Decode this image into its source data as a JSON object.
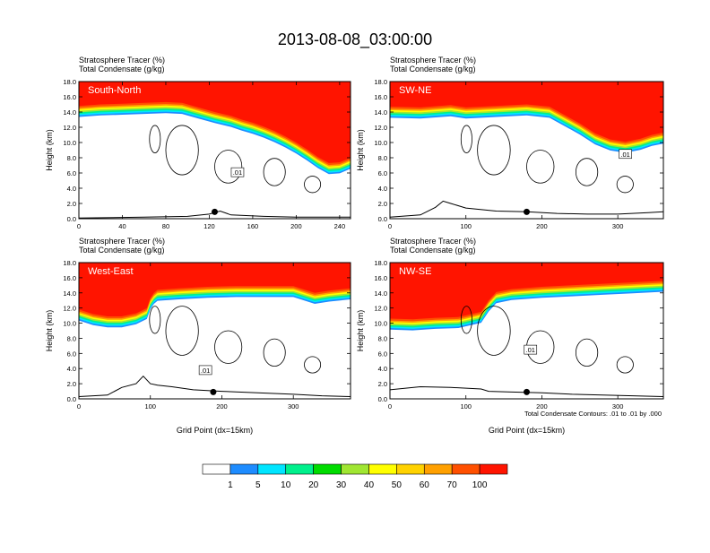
{
  "title": "2013-08-08_03:00:00",
  "footnote": "Total Condensate Contours: .01 to .01 by .000",
  "colorbar": {
    "colors": [
      "#ffffff",
      "#1e8cff",
      "#00e5ff",
      "#00f08c",
      "#00dc00",
      "#a0e632",
      "#ffff00",
      "#ffd200",
      "#ffa000",
      "#ff5000",
      "#ff1400"
    ],
    "labels": [
      "1",
      "5",
      "10",
      "20",
      "30",
      "40",
      "50",
      "60",
      "70",
      "100"
    ]
  },
  "chart_data": [
    {
      "type": "contour",
      "name": "South-North",
      "subtitle_line1": "Stratosphere Tracer   (%)",
      "subtitle_line2": "Total Condensate   (g/kg)",
      "ylabel": "Height (km)",
      "xlabel": "",
      "xlim": [
        0,
        250
      ],
      "xticks": [
        "0",
        "40",
        "80",
        "120",
        "160",
        "200",
        "240"
      ],
      "xtick_values": [
        0,
        40,
        80,
        120,
        160,
        200,
        240
      ],
      "ylim": [
        0,
        18
      ],
      "yticks": [
        "0.0",
        "2.0",
        "4.0",
        "6.0",
        "8.0",
        "10.0",
        "12.0",
        "14.0",
        "16.0",
        "18.0"
      ],
      "tropopause_x": [
        0,
        20,
        40,
        60,
        80,
        95,
        110,
        125,
        140,
        150,
        160,
        170,
        180,
        190,
        200,
        210,
        220,
        230,
        240,
        250
      ],
      "tropopause_km": [
        14.8,
        15.0,
        15.1,
        15.2,
        15.3,
        15.2,
        14.6,
        14.0,
        13.5,
        13.0,
        12.6,
        12.1,
        11.5,
        10.8,
        10.0,
        9.1,
        8.1,
        7.3,
        7.4,
        8.0
      ],
      "terrain_x": [
        0,
        60,
        100,
        120,
        130,
        140,
        170,
        200,
        250
      ],
      "terrain_km": [
        0.1,
        0.2,
        0.3,
        0.6,
        1.0,
        0.5,
        0.3,
        0.2,
        0.2
      ],
      "marker_x": 125,
      "contour_label": ".01",
      "contour_label_x": 146,
      "contour_label_km": 6.1
    },
    {
      "type": "contour",
      "name": "SW-NE",
      "subtitle_line1": "Stratosphere Tracer   (%)",
      "subtitle_line2": "Total Condensate   (g/kg)",
      "ylabel": "Height (km)",
      "xlabel": "",
      "xlim": [
        0,
        360
      ],
      "xticks": [
        "0",
        "100",
        "200",
        "300"
      ],
      "xtick_values": [
        0,
        100,
        200,
        300
      ],
      "ylim": [
        0,
        18
      ],
      "yticks": [
        "0.0",
        "2.0",
        "4.0",
        "6.0",
        "8.0",
        "10.0",
        "12.0",
        "14.0",
        "16.0",
        "18.0"
      ],
      "tropopause_x": [
        0,
        40,
        80,
        100,
        140,
        180,
        210,
        230,
        250,
        270,
        290,
        310,
        330,
        345,
        360
      ],
      "tropopause_km": [
        14.7,
        14.6,
        14.9,
        14.6,
        14.8,
        15.0,
        14.7,
        13.6,
        12.5,
        11.2,
        10.4,
        10.1,
        10.5,
        11.0,
        11.3
      ],
      "terrain_x": [
        0,
        40,
        60,
        70,
        80,
        100,
        140,
        180,
        220,
        260,
        300,
        340,
        360
      ],
      "terrain_km": [
        0.2,
        0.5,
        1.5,
        2.3,
        2.0,
        1.4,
        1.0,
        0.9,
        0.7,
        0.6,
        0.6,
        0.8,
        0.9
      ],
      "marker_x": 180,
      "contour_label": ".01",
      "contour_label_x": 310,
      "contour_label_km": 8.5
    },
    {
      "type": "contour",
      "name": "West-East",
      "subtitle_line1": "Stratosphere Tracer   (%)",
      "subtitle_line2": "Total Condensate   (g/kg)",
      "ylabel": "Height (km)",
      "xlabel": "Grid Point (dx=15km)",
      "xlim": [
        0,
        380
      ],
      "xticks": [
        "0",
        "100",
        "200",
        "300"
      ],
      "xtick_values": [
        0,
        100,
        200,
        300
      ],
      "ylim": [
        0,
        18
      ],
      "yticks": [
        "0.0",
        "2.0",
        "4.0",
        "6.0",
        "8.0",
        "10.0",
        "12.0",
        "14.0",
        "16.0",
        "18.0"
      ],
      "tropopause_x": [
        0,
        20,
        40,
        60,
        80,
        95,
        100,
        105,
        110,
        140,
        180,
        220,
        260,
        300,
        330,
        350,
        380
      ],
      "tropopause_km": [
        11.8,
        11.2,
        10.9,
        10.9,
        11.3,
        12.0,
        13.3,
        14.0,
        14.4,
        14.6,
        14.8,
        14.9,
        14.9,
        14.9,
        14.0,
        14.3,
        14.6
      ],
      "terrain_x": [
        0,
        40,
        60,
        80,
        90,
        100,
        110,
        130,
        160,
        200,
        250,
        300,
        340,
        380
      ],
      "terrain_km": [
        0.3,
        0.5,
        1.5,
        2.0,
        3.0,
        2.0,
        1.8,
        1.6,
        1.2,
        1.0,
        0.8,
        0.6,
        0.4,
        0.3
      ],
      "marker_x": 188,
      "contour_label": ".01",
      "contour_label_x": 177,
      "contour_label_km": 3.8
    },
    {
      "type": "contour",
      "name": "NW-SE",
      "subtitle_line1": "Stratosphere Tracer   (%)",
      "subtitle_line2": "Total Condensate   (g/kg)",
      "ylabel": "Height (km)",
      "xlabel": "Grid Point (dx=15km)",
      "xlim": [
        0,
        360
      ],
      "xticks": [
        "0",
        "100",
        "200",
        "300"
      ],
      "xtick_values": [
        0,
        100,
        200,
        300
      ],
      "ylim": [
        0,
        18
      ],
      "yticks": [
        "0.0",
        "2.0",
        "4.0",
        "6.0",
        "8.0",
        "10.0",
        "12.0",
        "14.0",
        "16.0",
        "18.0"
      ],
      "tropopause_x": [
        0,
        30,
        60,
        90,
        120,
        130,
        140,
        160,
        200,
        240,
        280,
        320,
        360
      ],
      "tropopause_km": [
        10.6,
        10.5,
        10.7,
        10.8,
        11.5,
        13.0,
        14.1,
        14.5,
        14.8,
        15.0,
        15.2,
        15.4,
        15.6
      ],
      "terrain_x": [
        0,
        40,
        80,
        120,
        130,
        160,
        200,
        240,
        280,
        320,
        360
      ],
      "terrain_km": [
        1.2,
        1.6,
        1.5,
        1.3,
        1.0,
        0.9,
        0.8,
        0.6,
        0.5,
        0.4,
        0.3
      ],
      "marker_x": 180,
      "contour_label": ".01",
      "contour_label_x": 185,
      "contour_label_km": 6.5
    }
  ]
}
